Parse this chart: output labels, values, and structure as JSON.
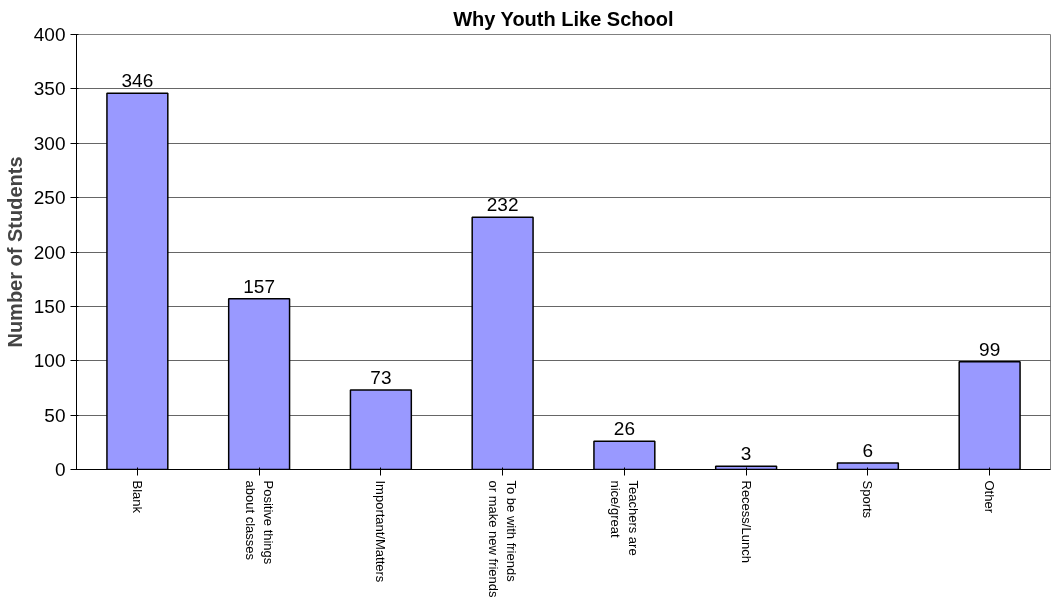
{
  "chart_data": {
    "type": "bar",
    "title": "Why Youth Like School",
    "ylabel": "Number of Students",
    "categories": [
      "Blank",
      "Positive things about classes",
      "Important/Matters",
      "To be with friends or make new friends",
      "Teachers are nice/great",
      "Recess/Lunch",
      "Sports",
      "Other"
    ],
    "values": [
      346,
      157,
      73,
      232,
      26,
      3,
      6,
      99
    ],
    "color": "#9999ff",
    "ylim": [
      0,
      400
    ],
    "yticks": [
      0,
      50,
      100,
      150,
      200,
      250,
      300,
      350,
      400
    ],
    "grid": "y",
    "data_labels": true
  }
}
